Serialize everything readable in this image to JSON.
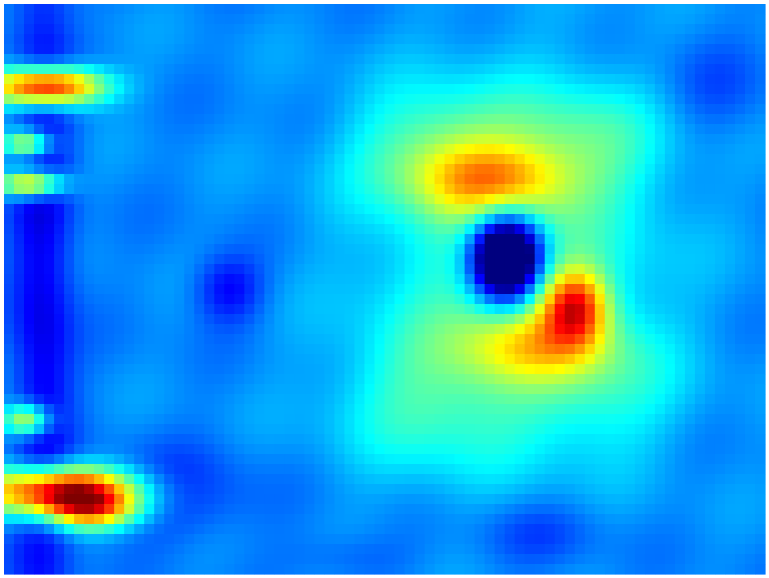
{
  "chart_data": {
    "type": "heatmap",
    "title": "",
    "xlabel": "",
    "ylabel": "",
    "colormap": "jet",
    "colormap_stops": [
      "#00007f",
      "#0000ff",
      "#0080ff",
      "#00ffff",
      "#80ff80",
      "#ffff00",
      "#ff8000",
      "#ff0000",
      "#7f0000"
    ],
    "grid": false,
    "legend": "none",
    "background_level": 0.26,
    "features": [
      {
        "name": "left-strip-dark",
        "cx": 0.05,
        "cy": 0.5,
        "sx": 0.03,
        "sy": 0.6,
        "amp": -0.16
      },
      {
        "name": "lower-left-dark",
        "cx": 0.22,
        "cy": 0.86,
        "sx": 0.07,
        "sy": 0.06,
        "amp": -0.1
      },
      {
        "name": "bottom-dark-a",
        "cx": 0.7,
        "cy": 0.93,
        "sx": 0.06,
        "sy": 0.04,
        "amp": -0.07
      },
      {
        "name": "bottom-dark-b",
        "cx": 0.45,
        "cy": 0.97,
        "sx": 0.06,
        "sy": 0.03,
        "amp": -0.05
      },
      {
        "name": "upper-right-dark",
        "cx": 0.93,
        "cy": 0.15,
        "sx": 0.05,
        "sy": 0.06,
        "amp": -0.06
      },
      {
        "name": "left-hot-1",
        "cx": 0.055,
        "cy": 0.145,
        "sx": 0.05,
        "sy": 0.024,
        "amp": 0.7
      },
      {
        "name": "left-hot-2",
        "cx": 0.03,
        "cy": 0.245,
        "sx": 0.022,
        "sy": 0.017,
        "amp": 0.38
      },
      {
        "name": "left-hot-3",
        "cx": 0.035,
        "cy": 0.315,
        "sx": 0.03,
        "sy": 0.017,
        "amp": 0.5
      },
      {
        "name": "left-hot-4",
        "cx": 0.03,
        "cy": 0.73,
        "sx": 0.022,
        "sy": 0.02,
        "amp": 0.38
      },
      {
        "name": "left-hot-5",
        "cx": 0.075,
        "cy": 0.855,
        "sx": 0.07,
        "sy": 0.03,
        "amp": 0.74
      },
      {
        "name": "left-hot-6",
        "cx": 0.115,
        "cy": 0.89,
        "sx": 0.045,
        "sy": 0.024,
        "amp": 0.34
      },
      {
        "name": "center-glow",
        "cx": 0.67,
        "cy": 0.45,
        "sx": 0.13,
        "sy": 0.21,
        "amp": 0.2
      },
      {
        "name": "x-arm-upper-left",
        "cx": 0.57,
        "cy": 0.25,
        "sx": 0.08,
        "sy": 0.07,
        "amp": 0.15
      },
      {
        "name": "x-arm-upper-right",
        "cx": 0.77,
        "cy": 0.24,
        "sx": 0.07,
        "sy": 0.07,
        "amp": 0.12
      },
      {
        "name": "x-arm-lower-left",
        "cx": 0.56,
        "cy": 0.7,
        "sx": 0.09,
        "sy": 0.09,
        "amp": 0.13
      },
      {
        "name": "x-arm-lower-right",
        "cx": 0.79,
        "cy": 0.68,
        "sx": 0.07,
        "sy": 0.08,
        "amp": 0.1
      },
      {
        "name": "yellow-upper",
        "cx": 0.64,
        "cy": 0.31,
        "sx": 0.07,
        "sy": 0.045,
        "amp": 0.28
      },
      {
        "name": "yellow-lower",
        "cx": 0.7,
        "cy": 0.6,
        "sx": 0.07,
        "sy": 0.045,
        "amp": 0.22
      },
      {
        "name": "orange-hotspot",
        "cx": 0.75,
        "cy": 0.53,
        "sx": 0.03,
        "sy": 0.045,
        "amp": 0.45
      },
      {
        "name": "central-cold-hole",
        "cx": 0.66,
        "cy": 0.445,
        "sx": 0.032,
        "sy": 0.052,
        "amp": -0.75
      },
      {
        "name": "left-cold-spot",
        "cx": 0.295,
        "cy": 0.5,
        "sx": 0.032,
        "sy": 0.042,
        "amp": -0.14
      }
    ]
  }
}
